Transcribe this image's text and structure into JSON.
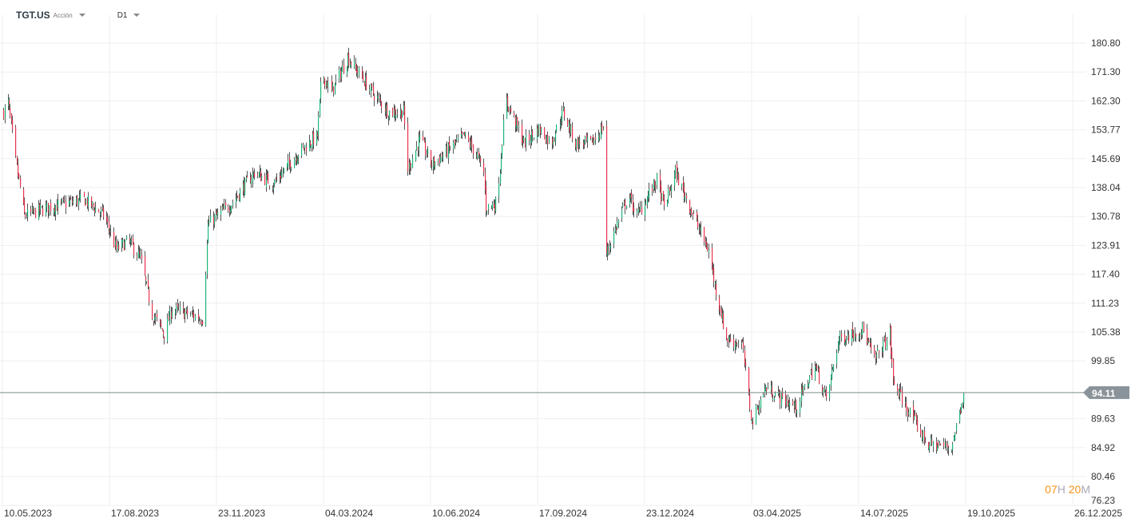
{
  "header": {
    "symbol": "TGT.US",
    "instrument_type": "Acción",
    "timeframe": "D1"
  },
  "countdown": {
    "hours": "07",
    "hours_unit": "H",
    "minutes": "20",
    "minutes_unit": "M"
  },
  "colors": {
    "up": "#1db57a",
    "down": "#e8344e",
    "wick": "#555555",
    "grid": "#efefef",
    "price_line": "#7f8c8d",
    "price_tag": "#8a9399",
    "countdown": "#f7931a"
  },
  "chart_data": {
    "type": "candlestick",
    "y_scale": "log",
    "grid": true,
    "ylim": [
      76.23,
      180.8
    ],
    "y_ticks": [
      "180.80",
      "171.30",
      "162.30",
      "153.77",
      "145.69",
      "138.04",
      "130.78",
      "123.91",
      "117.40",
      "111.23",
      "105.38",
      "99.85",
      "89.63",
      "84.92",
      "80.46",
      "76.23"
    ],
    "x_ticks": [
      "10.05.2023",
      "17.08.2023",
      "23.11.2023",
      "04.03.2024",
      "10.06.2024",
      "17.09.2024",
      "23.12.2024",
      "03.04.2025",
      "14.07.2025",
      "19.10.2025",
      "26.12.2025"
    ],
    "x_tick_dates": [
      "2023-05-10",
      "2023-08-17",
      "2023-11-23",
      "2024-03-04",
      "2024-06-10",
      "2024-09-17",
      "2024-12-23",
      "2025-04-03",
      "2025-07-14",
      "2025-10-19",
      "2025-12-26"
    ],
    "last_price": "94.11",
    "approx_close_path": [
      [
        "2023-05-11",
        159
      ],
      [
        "2023-05-15",
        162
      ],
      [
        "2023-05-22",
        145
      ],
      [
        "2023-05-30",
        131
      ],
      [
        "2023-06-21",
        133
      ],
      [
        "2023-07-24",
        135
      ],
      [
        "2023-08-12",
        131
      ],
      [
        "2023-08-23",
        123
      ],
      [
        "2023-09-03",
        125
      ],
      [
        "2023-09-14",
        121
      ],
      [
        "2023-09-25",
        109
      ],
      [
        "2023-10-06",
        105
      ],
      [
        "2023-10-13",
        110
      ],
      [
        "2023-11-11",
        108
      ],
      [
        "2023-11-15",
        129
      ],
      [
        "2023-12-07",
        134
      ],
      [
        "2023-12-29",
        142
      ],
      [
        "2024-01-16",
        139
      ],
      [
        "2024-02-11",
        148
      ],
      [
        "2024-02-27",
        152
      ],
      [
        "2024-03-02",
        171
      ],
      [
        "2024-03-11",
        165
      ],
      [
        "2024-03-26",
        176
      ],
      [
        "2024-04-17",
        165
      ],
      [
        "2024-05-02",
        159
      ],
      [
        "2024-05-16",
        159
      ],
      [
        "2024-05-20",
        143
      ],
      [
        "2024-05-31",
        151
      ],
      [
        "2024-06-11",
        144
      ],
      [
        "2024-07-11",
        152
      ],
      [
        "2024-07-22",
        147
      ],
      [
        "2024-07-29",
        142
      ],
      [
        "2024-07-31",
        133
      ],
      [
        "2024-08-09",
        134
      ],
      [
        "2024-08-13",
        143
      ],
      [
        "2024-08-18",
        163
      ],
      [
        "2024-09-04",
        150
      ],
      [
        "2024-09-18",
        154
      ],
      [
        "2024-09-29",
        150
      ],
      [
        "2024-10-10",
        159
      ],
      [
        "2024-10-21",
        150
      ],
      [
        "2024-11-05",
        150
      ],
      [
        "2024-11-16",
        155
      ],
      [
        "2024-11-18",
        122
      ],
      [
        "2024-12-08",
        136
      ],
      [
        "2024-12-16",
        131
      ],
      [
        "2025-01-03",
        140
      ],
      [
        "2025-01-10",
        133
      ],
      [
        "2025-01-21",
        142
      ],
      [
        "2025-02-05",
        132
      ],
      [
        "2025-02-22",
        122
      ],
      [
        "2025-02-27",
        115
      ],
      [
        "2025-03-10",
        104
      ],
      [
        "2025-03-25",
        103
      ],
      [
        "2025-03-29",
        96
      ],
      [
        "2025-04-03",
        89
      ],
      [
        "2025-04-16",
        95
      ],
      [
        "2025-05-15",
        91.5
      ],
      [
        "2025-06-02",
        99
      ],
      [
        "2025-06-13",
        93
      ],
      [
        "2025-06-25",
        104
      ],
      [
        "2025-07-17",
        106
      ],
      [
        "2025-07-28",
        100
      ],
      [
        "2025-08-11",
        105
      ],
      [
        "2025-08-14",
        96
      ],
      [
        "2025-08-26",
        91.5
      ],
      [
        "2025-09-14",
        85.5
      ],
      [
        "2025-10-06",
        85
      ],
      [
        "2025-10-17",
        94.11
      ]
    ]
  }
}
